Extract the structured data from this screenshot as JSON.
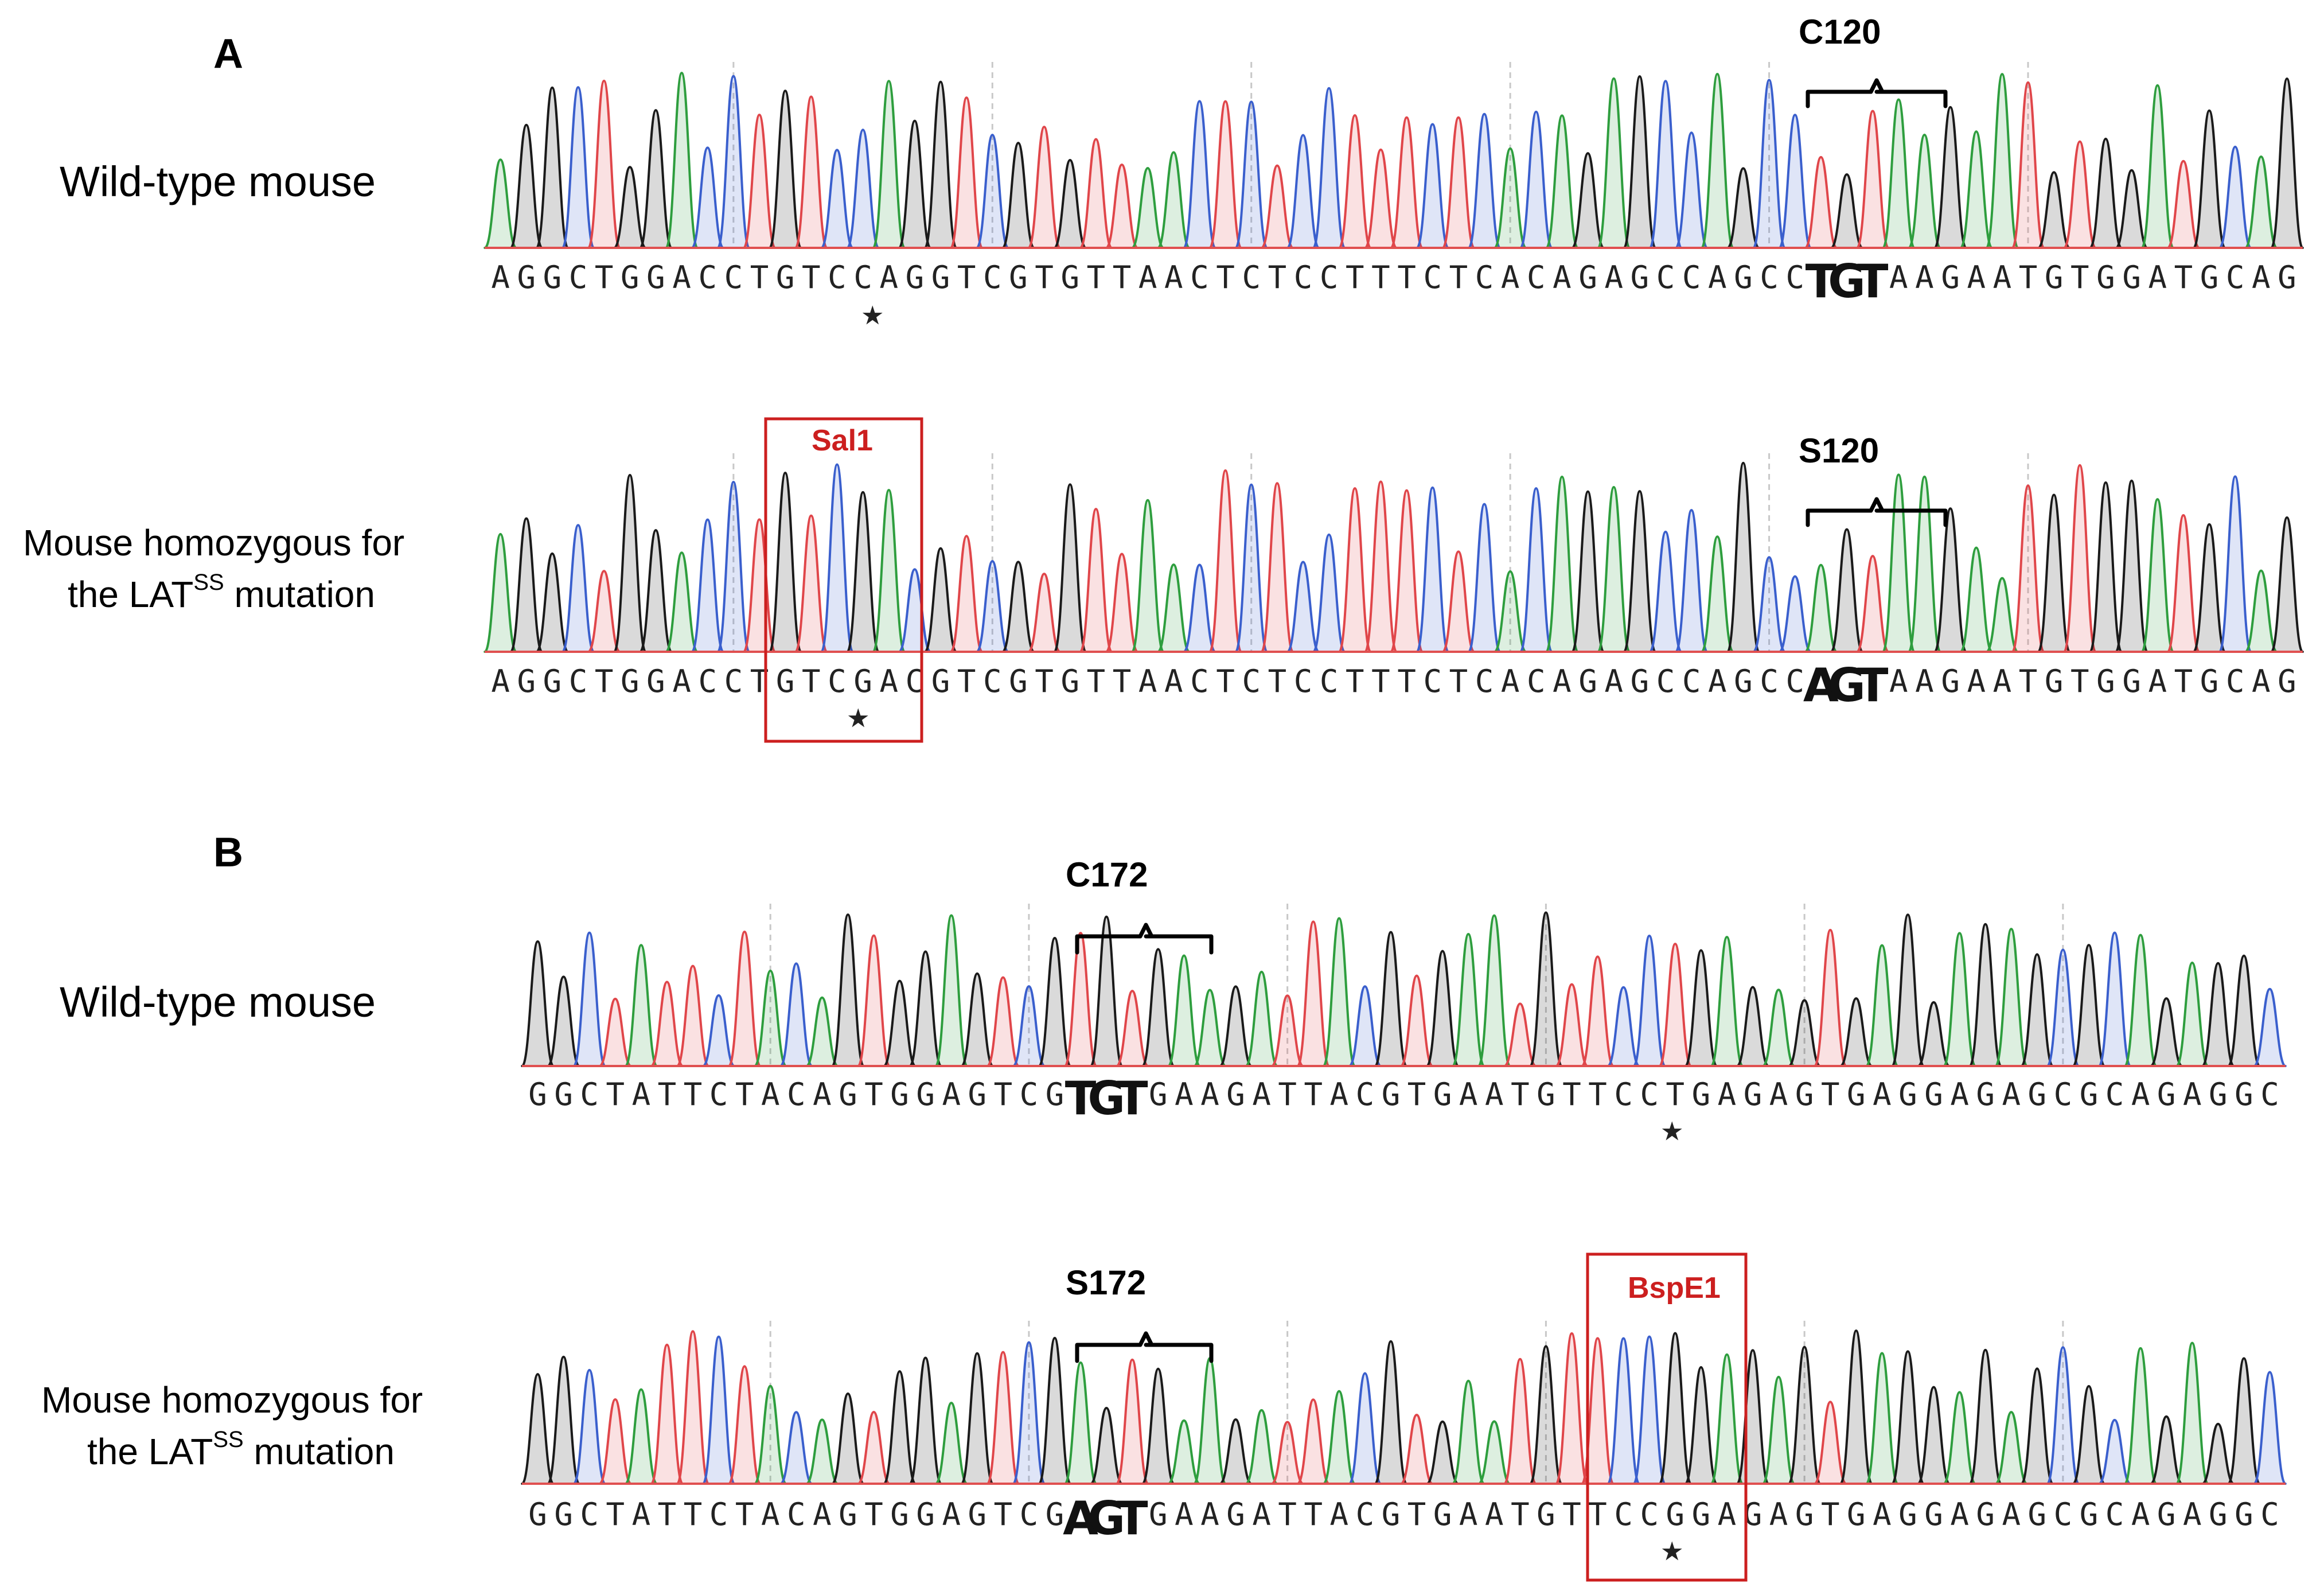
{
  "panels": {
    "a": {
      "letter": "A",
      "wt_label": "Wild-type mouse",
      "wt_sequence": "AGGCTGGACCTGTCCAGGTCGTGTTAACTCTCCTTTCTCACAGAGCCAGCCTGTAAGAATGTGGATGCAG",
      "wt_codon_label": "C120",
      "wt_codon": "TGT",
      "mut_label_line1": "Mouse homozygous for",
      "mut_label_line2_pre": "the LAT",
      "mut_label_sup": "SS",
      "mut_label_line2_post": " mutation",
      "mut_sequence": "AGGCTGGACCTGTCGACGTCGTGTTAACTCTCCTTTCTCACAGAGCCAGCCAGTAAGAATGTGGATGCAG",
      "mut_codon_label": "S120",
      "mut_codon": "AGT",
      "site_label": "Sal1",
      "star_glyph": "★"
    },
    "b": {
      "letter": "B",
      "wt_label": "Wild-type mouse",
      "wt_sequence": "GGCTATTCTACAGTGGAGTCGTGTGAAGATTACGTGAATGTTCCTGAGAGTGAGGAGAGCGCAGAGGC",
      "wt_codon_label": "C172",
      "wt_codon": "TGT",
      "mut_label_line1": "Mouse homozygous for",
      "mut_label_line2_pre": "the LAT",
      "mut_label_sup": "SS",
      "mut_label_line2_post": " mutation",
      "mut_sequence": "GGCTATTCTACAGTGGAGTCGAGTGAAGATTACGTGAATGTTCCGGAGAGTGAGGAGAGCGCAGAGGC",
      "mut_codon_label": "S172",
      "mut_codon": "AGT",
      "site_label": "BspE1",
      "star_glyph": "★"
    }
  },
  "colors": {
    "A": "#2e9e3e",
    "C": "#3a5fcd",
    "G": "#1a1a1a",
    "T": "#e0464a",
    "site": "#cc1f1f",
    "star_wt": "#000000"
  }
}
